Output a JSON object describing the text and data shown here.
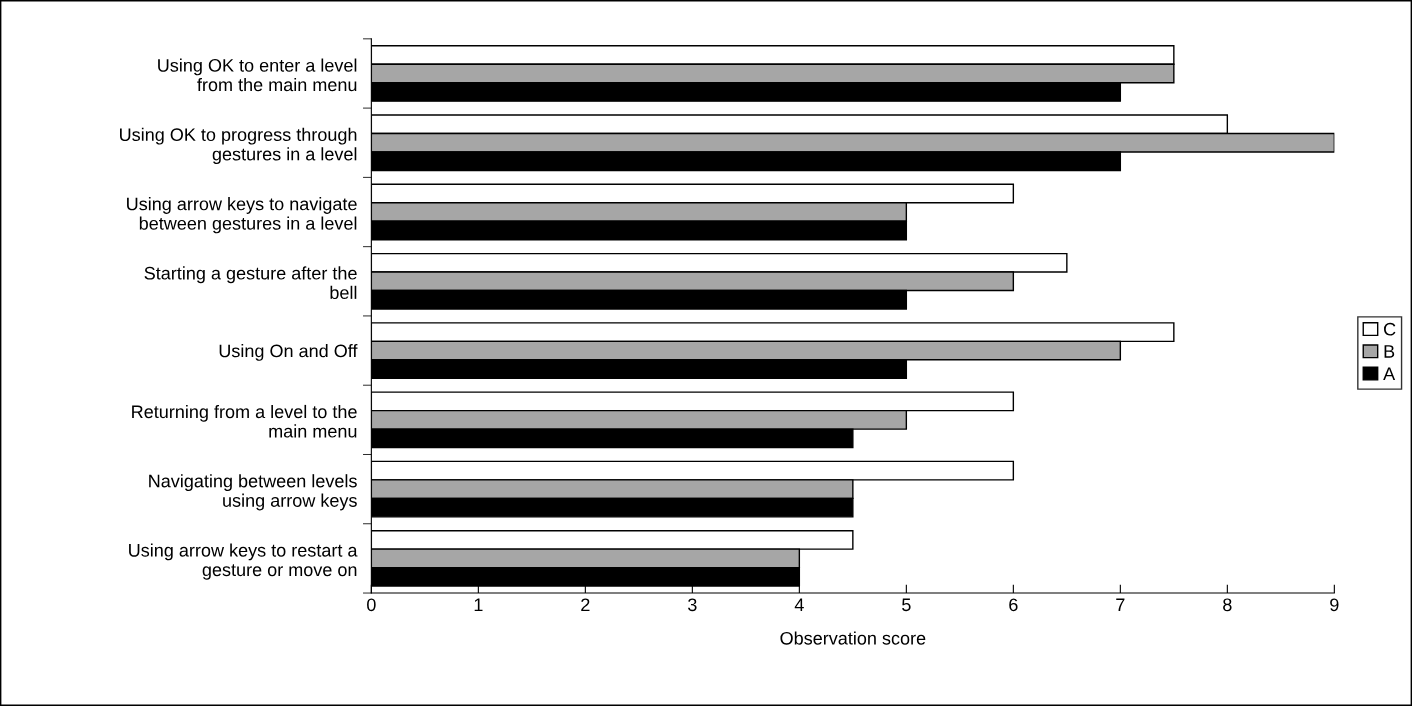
{
  "chart_data": {
    "type": "bar",
    "orientation": "horizontal",
    "xlabel": "Observation score",
    "categories": [
      "Using OK to enter a level\nfrom the main menu",
      "Using OK to progress through\ngestures in a level",
      "Using arrow keys to navigate\nbetween gestures in a level",
      "Starting a gesture after the\nbell",
      "Using On and Off",
      "Returning from a level to the\nmain menu",
      "Navigating between levels\nusing arrow keys",
      "Using arrow keys to restart a\ngesture or move on"
    ],
    "series": [
      {
        "name": "C",
        "color": "#ffffff",
        "values": [
          7.5,
          8,
          6,
          6.5,
          7.5,
          6,
          6,
          4.5
        ]
      },
      {
        "name": "B",
        "color": "#a6a6a6",
        "values": [
          7.5,
          9,
          5,
          6,
          7,
          5,
          4.5,
          4
        ]
      },
      {
        "name": "A",
        "color": "#000000",
        "values": [
          7,
          7,
          5,
          5,
          5,
          4.5,
          4.5,
          4
        ]
      }
    ],
    "xlim": [
      0,
      9
    ],
    "xticks": [
      0,
      1,
      2,
      3,
      4,
      5,
      6,
      7,
      8,
      9
    ],
    "grid": false,
    "legend": "right"
  }
}
